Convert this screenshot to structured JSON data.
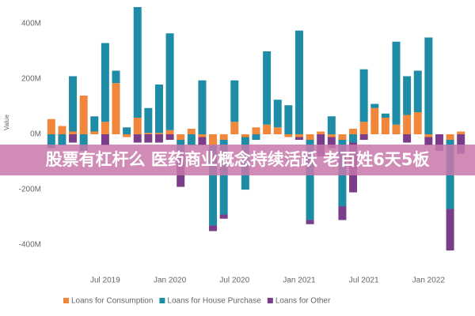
{
  "chart_data": {
    "type": "stacked-bar",
    "y_label": "Value",
    "categories": [
      null,
      null,
      null,
      null,
      null,
      "Jul 2019",
      null,
      null,
      null,
      null,
      null,
      "Jan 2020",
      null,
      null,
      null,
      null,
      null,
      "Jul 2020",
      null,
      null,
      null,
      null,
      null,
      "Jan 2021",
      null,
      null,
      null,
      null,
      null,
      "Jul 2021",
      null,
      null,
      null,
      null,
      null,
      "Jan 2022",
      null,
      null,
      null
    ],
    "series": [
      {
        "name": "Loans for Consumption",
        "color": "#f0873a",
        "values": [
          55,
          30,
          10,
          140,
          10,
          45,
          185,
          -10,
          60,
          5,
          5,
          15,
          -20,
          20,
          -10,
          -40,
          -20,
          45,
          -10,
          25,
          35,
          25,
          -10,
          -10,
          -20,
          10,
          -10,
          -20,
          20,
          45,
          95,
          60,
          35,
          70,
          80,
          -10,
          0,
          -20,
          10
        ]
      },
      {
        "name": "Loans for House Purchase",
        "color": "#1e8ca6",
        "values": [
          -50,
          -40,
          200,
          -60,
          55,
          285,
          45,
          25,
          400,
          90,
          175,
          350,
          -60,
          -40,
          195,
          -290,
          -270,
          150,
          -190,
          -20,
          265,
          100,
          105,
          375,
          -290,
          0,
          65,
          -240,
          -30,
          190,
          15,
          15,
          300,
          140,
          150,
          350,
          0,
          -250,
          0
        ]
      },
      {
        "name": "Loans for Other",
        "color": "#7a3d8a",
        "values": [
          0,
          0,
          -30,
          0,
          0,
          -40,
          0,
          0,
          -30,
          -30,
          -30,
          -20,
          -110,
          0,
          -30,
          -20,
          -15,
          0,
          0,
          0,
          0,
          0,
          0,
          -10,
          -15,
          -80,
          -40,
          -50,
          -180,
          -20,
          0,
          0,
          0,
          -30,
          0,
          -30,
          -60,
          -150,
          -70
        ]
      }
    ],
    "ylim": [
      -457,
      457
    ],
    "yticks": [
      {
        "value": 400,
        "label": "400M"
      },
      {
        "value": 200,
        "label": "200M"
      },
      {
        "value": 0,
        "label": "0M"
      },
      {
        "value": -200,
        "label": "-200M"
      },
      {
        "value": -400,
        "label": "-400M"
      }
    ],
    "grid": false
  },
  "banner": {
    "text": "股票有杠杆么 医药商业概念持续活跃 老百姓6天5板"
  }
}
